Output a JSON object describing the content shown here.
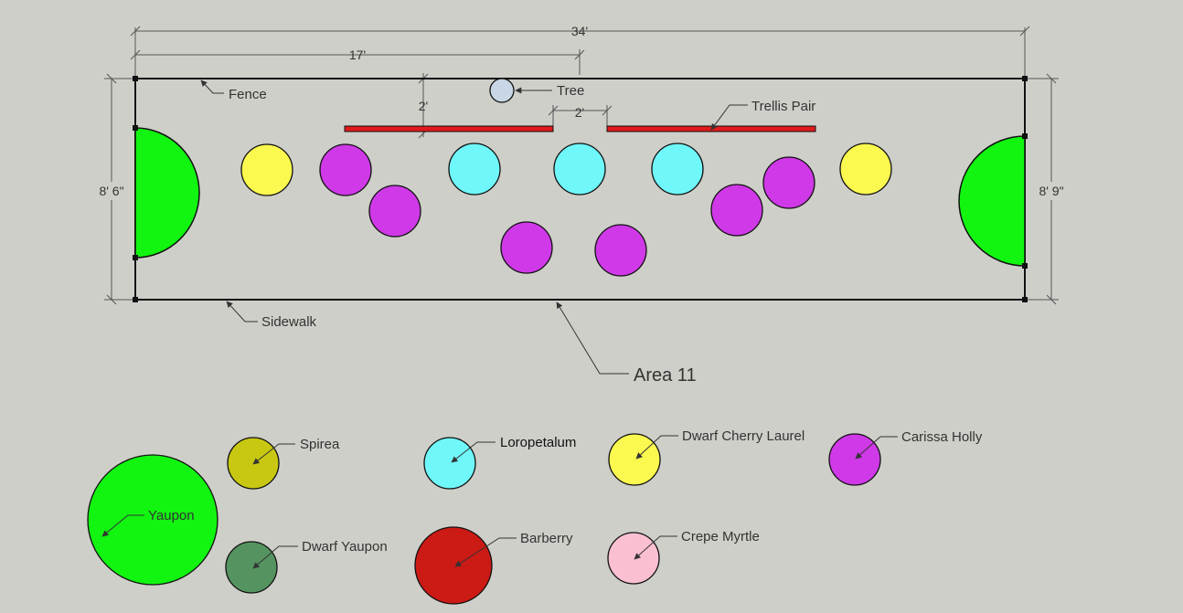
{
  "dimensions": {
    "overall_length": "34'",
    "half_length": "17'",
    "trellis_depth": "2'",
    "trellis_gap": "2'",
    "left_depth": "8' 6\"",
    "right_depth": "8' 9\""
  },
  "callouts": {
    "fence": "Fence",
    "tree": "Tree",
    "trellis": "Trellis Pair",
    "sidewalk": "Sidewalk",
    "area": "Area 11"
  },
  "legend": [
    {
      "key": "yaupon",
      "label": "Yaupon",
      "color": "#11f511"
    },
    {
      "key": "spirea",
      "label": "Spirea",
      "color": "#c8c812"
    },
    {
      "key": "dwarf_yaupon",
      "label": "Dwarf Yaupon",
      "color": "#559460"
    },
    {
      "key": "loropetalum",
      "label": "Loropetalum",
      "color": "#6ff7fa"
    },
    {
      "key": "barberry",
      "label": "Barberry",
      "color": "#cc1a15"
    },
    {
      "key": "dwarf_cherry_laurel",
      "label": "Dwarf Cherry Laurel",
      "color": "#fbf84f"
    },
    {
      "key": "crepe_myrtle",
      "label": "Crepe Myrtle",
      "color": "#fbbfd2"
    },
    {
      "key": "carissa_holly",
      "label": "Carissa Holly",
      "color": "#cf39e7"
    }
  ],
  "colors": {
    "background": "#cfcfca",
    "line": "#111111",
    "trellis": "#e01a1a",
    "tree": "#c8d6e6"
  }
}
